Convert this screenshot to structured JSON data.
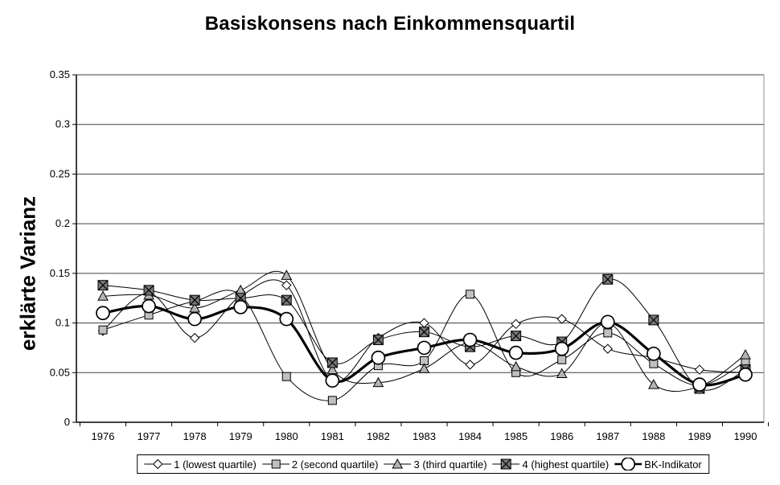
{
  "title": "Basiskonsens nach Einkommensquartil",
  "y_axis": {
    "label": "erklärte Varianz",
    "ticks": [
      "0",
      "0.05",
      "0.1",
      "0.15",
      "0.2",
      "0.25",
      "0.3",
      "0.35"
    ],
    "min": 0,
    "max": 0.35
  },
  "x_axis": {
    "categories": [
      "1976",
      "1977",
      "1978",
      "1979",
      "1980",
      "1981",
      "1982",
      "1983",
      "1984",
      "1985",
      "1986",
      "1987",
      "1988",
      "1989",
      "1990"
    ]
  },
  "colors": {
    "line": "#000000",
    "gridline": "#404040",
    "plot_border_right": "#909090",
    "marker_open_fill": "#ffffff",
    "marker_gray_fill": "#c0c0c0",
    "marker_triangle_fill": "#b3b3b3",
    "marker_dark_fill": "#787878"
  },
  "chart_data": {
    "type": "line",
    "title": "Basiskonsens nach Einkommensquartil",
    "xlabel": "",
    "ylabel": "erklärte Varianz",
    "ylim": [
      0,
      0.35
    ],
    "grid": "horizontal",
    "legend_position": "bottom",
    "smoothed_lines": true,
    "categories": [
      "1976",
      "1977",
      "1978",
      "1979",
      "1980",
      "1981",
      "1982",
      "1983",
      "1984",
      "1985",
      "1986",
      "1987",
      "1988",
      "1989",
      "1990"
    ],
    "series": [
      {
        "name": "1 (lowest quartile)",
        "marker": "diamond-open",
        "line": "thin",
        "values": [
          0.092,
          0.13,
          0.085,
          0.127,
          0.138,
          0.042,
          0.085,
          0.1,
          0.058,
          0.099,
          0.104,
          0.074,
          0.065,
          0.053,
          0.05
        ]
      },
      {
        "name": "2 (second quartile)",
        "marker": "square-gray",
        "line": "thin",
        "values": [
          0.093,
          0.108,
          0.122,
          0.128,
          0.046,
          0.022,
          0.057,
          0.062,
          0.129,
          0.05,
          0.063,
          0.09,
          0.059,
          0.037,
          0.061
        ]
      },
      {
        "name": "3 (third quartile)",
        "marker": "triangle-gray",
        "line": "thin",
        "values": [
          0.127,
          0.128,
          0.115,
          0.133,
          0.148,
          0.053,
          0.04,
          0.054,
          0.08,
          0.056,
          0.049,
          0.1,
          0.038,
          0.036,
          0.068
        ]
      },
      {
        "name": "4 (highest quartile)",
        "marker": "square-dark-x",
        "line": "thin",
        "values": [
          0.138,
          0.133,
          0.123,
          0.125,
          0.123,
          0.06,
          0.083,
          0.091,
          0.076,
          0.087,
          0.081,
          0.144,
          0.103,
          0.034,
          0.053
        ]
      },
      {
        "name": "BK-Indikator",
        "marker": "circle-open-large",
        "line": "thick",
        "values": [
          0.11,
          0.117,
          0.104,
          0.116,
          0.104,
          0.042,
          0.065,
          0.075,
          0.083,
          0.07,
          0.074,
          0.101,
          0.069,
          0.038,
          0.048
        ]
      }
    ]
  }
}
